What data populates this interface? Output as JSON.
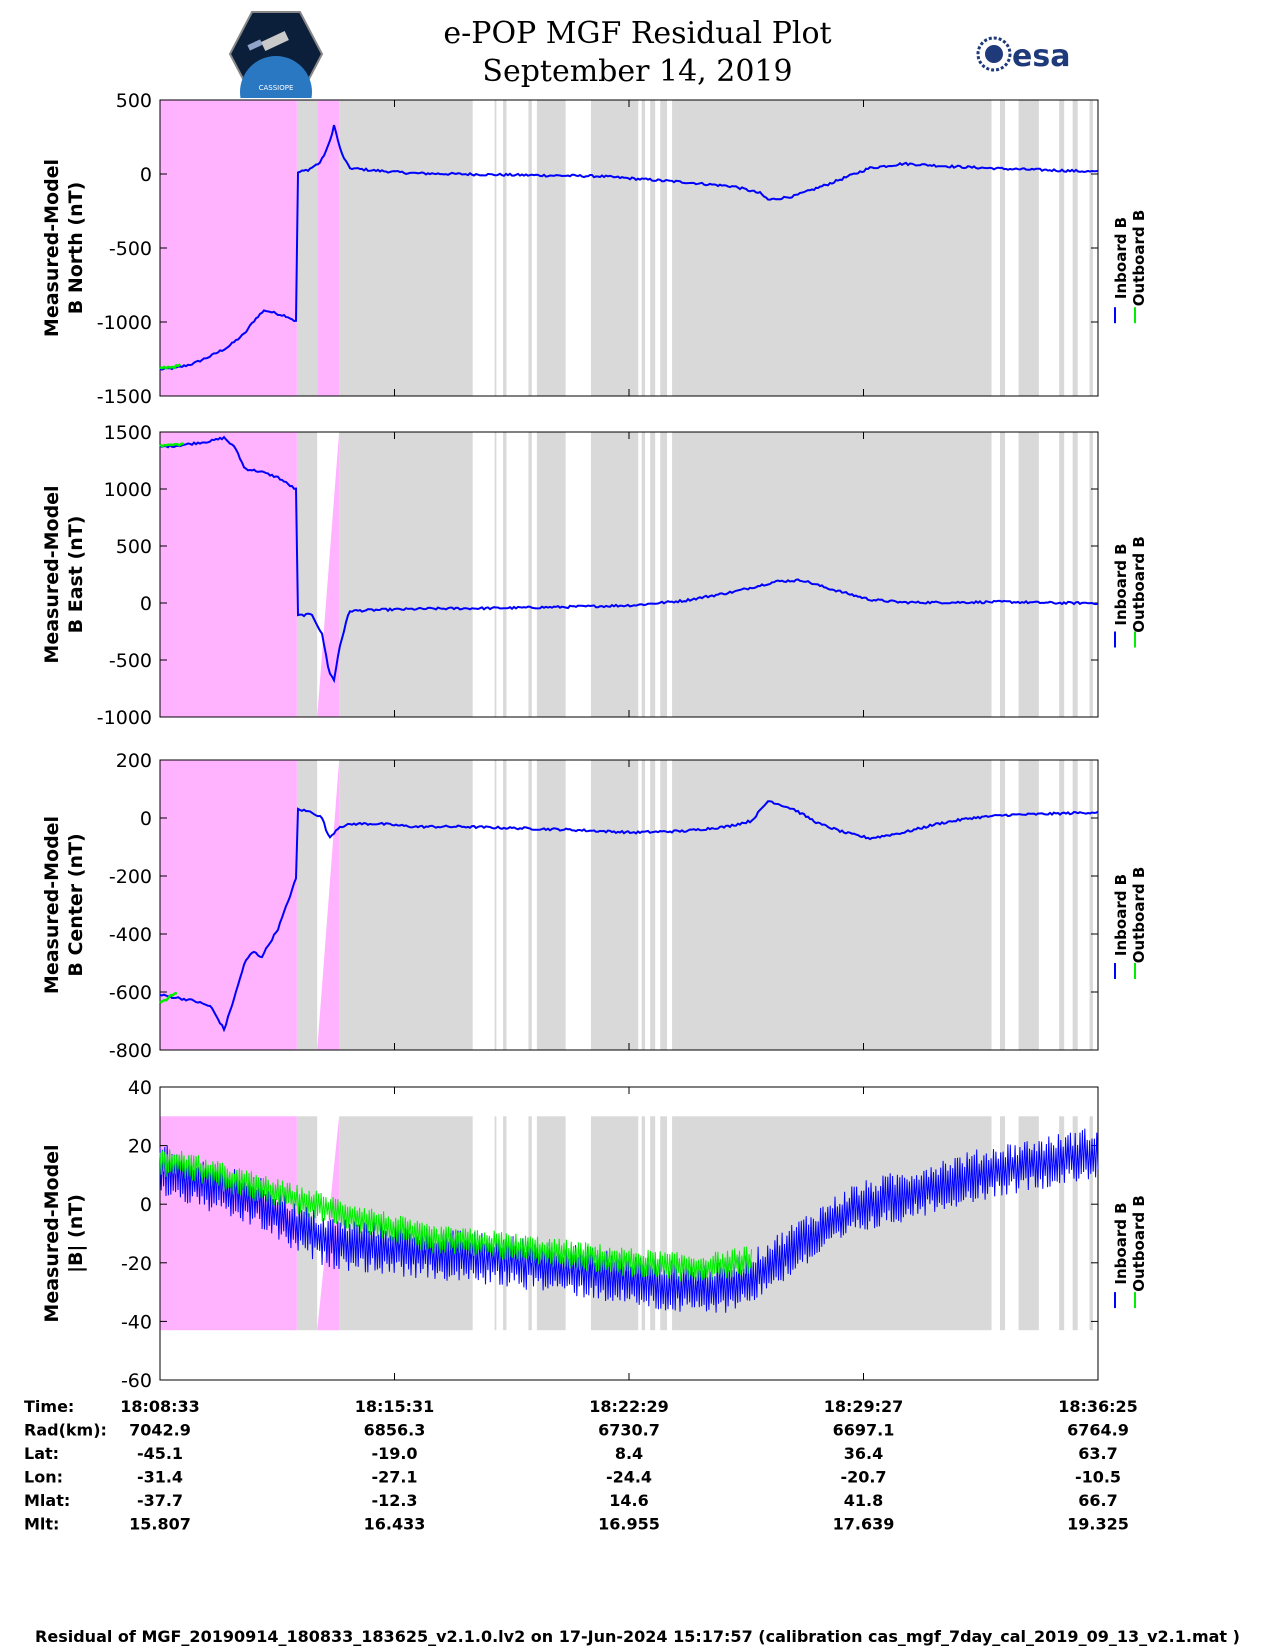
{
  "header": {
    "title_line1": "e-POP MGF Residual Plot",
    "title_line2": "September 14, 2019",
    "logo_left": "CASSIOPE",
    "logo_right": "esa"
  },
  "colors": {
    "inboard": "#0000ff",
    "outboard": "#00ee00",
    "pink_shade": "#ffb3ff",
    "gray_shade": "#d9d9d9"
  },
  "shading": {
    "pink_intervals_s": [
      [
        0,
        81
      ],
      [
        93,
        106
      ]
    ],
    "gray_intervals_s": [
      [
        81,
        93
      ],
      [
        106,
        185
      ],
      [
        198,
        199
      ],
      [
        203,
        205
      ],
      [
        218,
        220
      ],
      [
        223,
        240
      ],
      [
        255,
        283
      ],
      [
        285,
        287
      ],
      [
        290,
        293
      ],
      [
        296,
        300
      ],
      [
        303,
        492
      ],
      [
        497,
        500
      ],
      [
        508,
        520
      ],
      [
        532,
        535
      ],
      [
        540,
        543
      ],
      [
        550,
        552
      ]
    ]
  },
  "chart_data": [
    {
      "type": "line",
      "id": "north",
      "ylabel": [
        "Measured-Model",
        "B North (nT)"
      ],
      "ylim": [
        -1500,
        500
      ],
      "yticks": [
        -1500,
        -1000,
        -500,
        0,
        500
      ],
      "xlim": [
        0,
        555
      ],
      "legend": [
        "Inboard B",
        "Outboard B"
      ],
      "shade_ylim": [
        -1500,
        500
      ],
      "series": [
        {
          "name": "Inboard B",
          "x": [
            0,
            10,
            20,
            30,
            40,
            50,
            55,
            58,
            62,
            68,
            75,
            81,
            81.5,
            88,
            95,
            100,
            103,
            107,
            112,
            125,
            150,
            175,
            200,
            230,
            260,
            285,
            310,
            340,
            355,
            360,
            375,
            395,
            420,
            440,
            470,
            500,
            530,
            555
          ],
          "y": [
            -1320,
            -1310,
            -1280,
            -1230,
            -1170,
            -1080,
            -1000,
            -960,
            -920,
            -940,
            -960,
            -1000,
            10,
            30,
            80,
            200,
            330,
            150,
            40,
            25,
            5,
            0,
            -5,
            -10,
            -15,
            -35,
            -55,
            -85,
            -130,
            -175,
            -150,
            -70,
            40,
            70,
            50,
            35,
            25,
            15
          ]
        },
        {
          "name": "Outboard B",
          "x": [
            0,
            10,
            12
          ],
          "y": [
            -1310,
            -1300,
            -1290
          ]
        }
      ]
    },
    {
      "type": "line",
      "id": "east",
      "ylabel": [
        "Measured-Model",
        "B East (nT)"
      ],
      "ylim": [
        -1000,
        1500
      ],
      "yticks": [
        -1000,
        -500,
        0,
        500,
        1000,
        1500
      ],
      "xlim": [
        0,
        555
      ],
      "legend": [
        "Inboard B",
        "Outboard B"
      ],
      "shade_ylim": [
        -1000,
        1500
      ],
      "series": [
        {
          "name": "Inboard B",
          "x": [
            0,
            10,
            20,
            30,
            38,
            45,
            50,
            60,
            70,
            81,
            81.5,
            90,
            96,
            100,
            103,
            106,
            112,
            130,
            160,
            200,
            240,
            280,
            310,
            340,
            365,
            380,
            395,
            420,
            440,
            470,
            500,
            530,
            555
          ],
          "y": [
            1370,
            1380,
            1400,
            1420,
            1450,
            1350,
            1180,
            1150,
            1100,
            990,
            -110,
            -100,
            -280,
            -600,
            -680,
            -400,
            -70,
            -60,
            -50,
            -45,
            -35,
            -20,
            20,
            100,
            190,
            200,
            130,
            30,
            5,
            5,
            10,
            0,
            0
          ]
        },
        {
          "name": "Outboard B",
          "x": [
            0,
            10,
            14
          ],
          "y": [
            1380,
            1390,
            1395
          ]
        }
      ]
    },
    {
      "type": "line",
      "id": "center",
      "ylabel": [
        "Measured-Model",
        "B Center (nT)"
      ],
      "ylim": [
        -800,
        200
      ],
      "yticks": [
        -800,
        -600,
        -400,
        -200,
        0,
        200
      ],
      "xlim": [
        0,
        555
      ],
      "legend": [
        "Inboard B",
        "Outboard B"
      ],
      "shade_ylim": [
        -800,
        200
      ],
      "series": [
        {
          "name": "Inboard B",
          "x": [
            0,
            10,
            20,
            30,
            38,
            45,
            50,
            55,
            60,
            65,
            70,
            75,
            81,
            81.5,
            90,
            96,
            100,
            106,
            115,
            130,
            150,
            180,
            210,
            240,
            280,
            310,
            335,
            350,
            360,
            375,
            390,
            405,
            420,
            440,
            460,
            480,
            500,
            530,
            555
          ],
          "y": [
            -610,
            -620,
            -630,
            -650,
            -730,
            -600,
            -500,
            -460,
            -480,
            -430,
            -380,
            -300,
            -200,
            30,
            20,
            0,
            -70,
            -30,
            -20,
            -20,
            -30,
            -30,
            -35,
            -40,
            -50,
            -45,
            -30,
            -10,
            60,
            30,
            -20,
            -50,
            -70,
            -50,
            -20,
            0,
            10,
            15,
            20
          ]
        },
        {
          "name": "Outboard B",
          "x": [
            0,
            5,
            10
          ],
          "y": [
            -640,
            -620,
            -600
          ]
        }
      ]
    },
    {
      "type": "line",
      "id": "magnitude",
      "ylabel": [
        "Measured-Model",
        "|B| (nT)"
      ],
      "ylim": [
        -60,
        40
      ],
      "yticks": [
        -60,
        -40,
        -20,
        0,
        20,
        40
      ],
      "xlim": [
        0,
        555
      ],
      "legend": [
        "Inboard B",
        "Outboard B"
      ],
      "shade_ylim": [
        -43,
        30
      ],
      "series": [
        {
          "name": "Inboard B",
          "x": [
            0,
            30,
            60,
            81,
            100,
            130,
            160,
            200,
            240,
            280,
            300,
            320,
            330,
            350,
            380,
            410,
            440,
            470,
            500,
            530,
            555
          ],
          "y": [
            12,
            6,
            0,
            -8,
            -13,
            -15,
            -17,
            -19,
            -22,
            -26,
            -28,
            -29,
            -29,
            -25,
            -13,
            -2,
            3,
            8,
            12,
            15,
            18
          ],
          "band": 9
        },
        {
          "name": "Outboard B",
          "x": [
            0,
            10,
            160,
            200,
            240,
            280,
            300,
            320,
            330,
            340,
            350
          ],
          "y": [
            14,
            14,
            -12,
            -14,
            -17,
            -20,
            -21,
            -22,
            -21,
            -20,
            -19
          ],
          "band": 5
        }
      ]
    }
  ],
  "axis_info": {
    "row_labels": [
      "Time:",
      "Rad(km):",
      "Lat:",
      "Lon:",
      "Mlat:",
      "Mlt:"
    ],
    "columns": [
      {
        "t": 0,
        "values": [
          "18:08:33",
          "7042.9",
          "-45.1",
          "-31.4",
          "-37.7",
          "15.807"
        ]
      },
      {
        "t": 138.75,
        "values": [
          "18:15:31",
          "6856.3",
          "-19.0",
          "-27.1",
          "-12.3",
          "16.433"
        ]
      },
      {
        "t": 277.5,
        "values": [
          "18:22:29",
          "6730.7",
          "8.4",
          "-24.4",
          "14.6",
          "16.955"
        ]
      },
      {
        "t": 416.25,
        "values": [
          "18:29:27",
          "6697.1",
          "36.4",
          "-20.7",
          "41.8",
          "17.639"
        ]
      },
      {
        "t": 555,
        "values": [
          "18:36:25",
          "6764.9",
          "63.7",
          "-10.5",
          "66.7",
          "19.325"
        ]
      }
    ]
  },
  "footer": "Residual of MGF_20190914_180833_183625_v2.1.0.lv2 on 17-Jun-2024 15:17:57 (calibration cas_mgf_7day_cal_2019_09_13_v2.1.mat )"
}
